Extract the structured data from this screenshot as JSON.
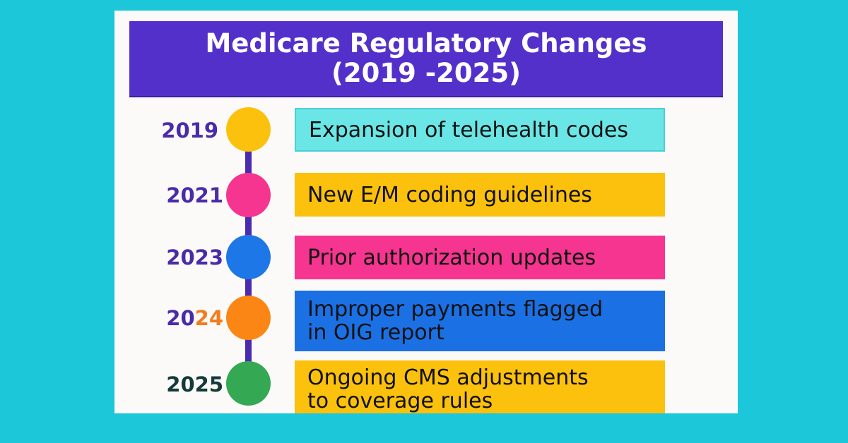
{
  "title": {
    "line1": "Medicare Regulatory Changes",
    "line2": "(2019 -2025)"
  },
  "colors": {
    "background": "#1bc7d9",
    "title_bar": "#5430cb",
    "spine": "#4a2bb0",
    "year_text": "#4a2ba8"
  },
  "events": [
    {
      "year": "2019",
      "text_lines": [
        "Expansion of telehealth codes"
      ],
      "dot_color": "#fcc10d",
      "box_color": "#6ae6e6",
      "text_color": "#111111"
    },
    {
      "year": "2021",
      "text_lines": [
        "New E/M coding guidelines"
      ],
      "dot_color": "#f5358f",
      "box_color": "#fcc10d",
      "text_color": "#111111"
    },
    {
      "year": "2023",
      "text_lines": [
        "Prior authorization updates"
      ],
      "dot_color": "#1d77e6",
      "box_color": "#f5358f",
      "text_color": "#111111"
    },
    {
      "year_parts": [
        "20",
        "24"
      ],
      "text_lines": [
        "Improper payments flagged",
        "in OIG report"
      ],
      "dot_color": "#fb8616",
      "box_color": "#1b70e3",
      "text_color": "#111111"
    },
    {
      "year": "2025",
      "text_lines": [
        "Ongoing CMS adjustments",
        "to coverage rules"
      ],
      "dot_color": "#34a853",
      "box_color": "#fcc10d",
      "text_color": "#111111"
    }
  ]
}
